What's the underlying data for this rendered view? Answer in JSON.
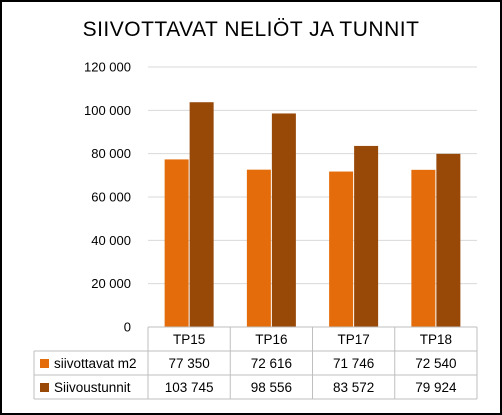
{
  "chart_data": {
    "type": "bar",
    "title": "SIIVOTTAVAT  NELIÖT JA TUNNIT",
    "categories": [
      "TP15",
      "TP16",
      "TP17",
      "TP18"
    ],
    "series": [
      {
        "name": "siivottavat m2",
        "values": [
          77350,
          72616,
          71746,
          72540
        ],
        "labels": [
          "77 350",
          "72 616",
          "71 746",
          "72 540"
        ],
        "color": "#e46c0a"
      },
      {
        "name": "Siivoustunnit",
        "values": [
          103745,
          98556,
          83572,
          79924
        ],
        "labels": [
          "103 745",
          "98 556",
          "83 572",
          "79 924"
        ],
        "color": "#984807"
      }
    ],
    "ylim": [
      0,
      120000
    ],
    "yticks": [
      0,
      20000,
      40000,
      60000,
      80000,
      100000,
      120000
    ],
    "ytick_labels": [
      "0",
      "20 000",
      "40 000",
      "60 000",
      "80 000",
      "100 000",
      "120 000"
    ],
    "grid": true,
    "legend": "data-table-left",
    "xlabel": "",
    "ylabel": ""
  }
}
